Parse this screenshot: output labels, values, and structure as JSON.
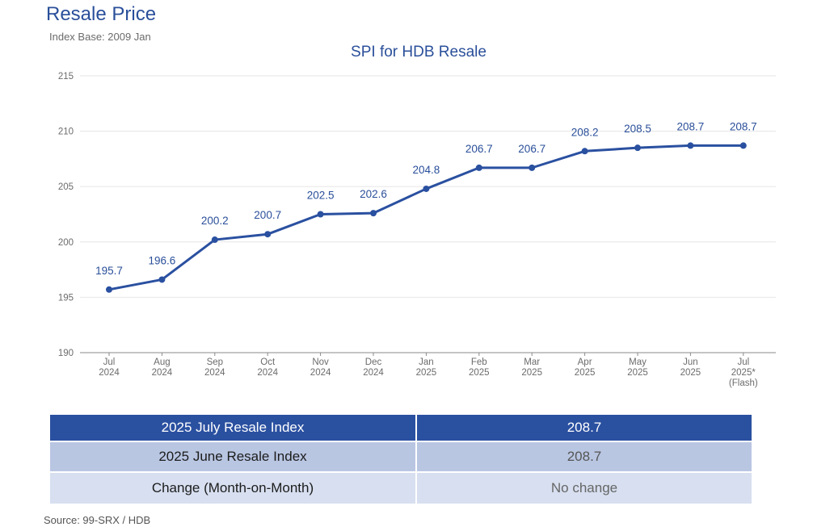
{
  "header": {
    "title": "Resale Price",
    "subtitle": "Index Base: 2009 Jan"
  },
  "chart_data": {
    "type": "line",
    "title": "SPI for HDB Resale",
    "xlabel": "",
    "ylabel": "",
    "categories": [
      [
        "Jul",
        "2024"
      ],
      [
        "Aug",
        "2024"
      ],
      [
        "Sep",
        "2024"
      ],
      [
        "Oct",
        "2024"
      ],
      [
        "Nov",
        "2024"
      ],
      [
        "Dec",
        "2024"
      ],
      [
        "Jan",
        "2025"
      ],
      [
        "Feb",
        "2025"
      ],
      [
        "Mar",
        "2025"
      ],
      [
        "Apr",
        "2025"
      ],
      [
        "May",
        "2025"
      ],
      [
        "Jun",
        "2025"
      ],
      [
        "Jul",
        "2025*",
        "(Flash)"
      ]
    ],
    "series": [
      {
        "values": [
          195.7,
          196.6,
          200.2,
          200.7,
          202.5,
          202.6,
          204.8,
          206.7,
          206.7,
          208.2,
          208.5,
          208.7,
          208.7
        ],
        "labels": [
          "195.7",
          "196.6",
          "200.2",
          "200.7",
          "202.5",
          "202.6",
          "204.8",
          "206.7",
          "206.7",
          "208.2",
          "208.5",
          "208.7",
          "208.7"
        ]
      }
    ],
    "ylim": [
      190,
      215
    ],
    "yticks": [
      "190",
      "195",
      "200",
      "205",
      "210",
      "215"
    ],
    "grid": true,
    "line_color": "#2a50a0"
  },
  "summary_table": {
    "rows": [
      {
        "label": "2025 July Resale Index",
        "value": "208.7"
      },
      {
        "label": "2025 June Resale Index",
        "value": "208.7"
      },
      {
        "label": "Change (Month-on-Month)",
        "value": "No change"
      }
    ]
  },
  "footer": {
    "source": "Source: 99-SRX / HDB"
  }
}
